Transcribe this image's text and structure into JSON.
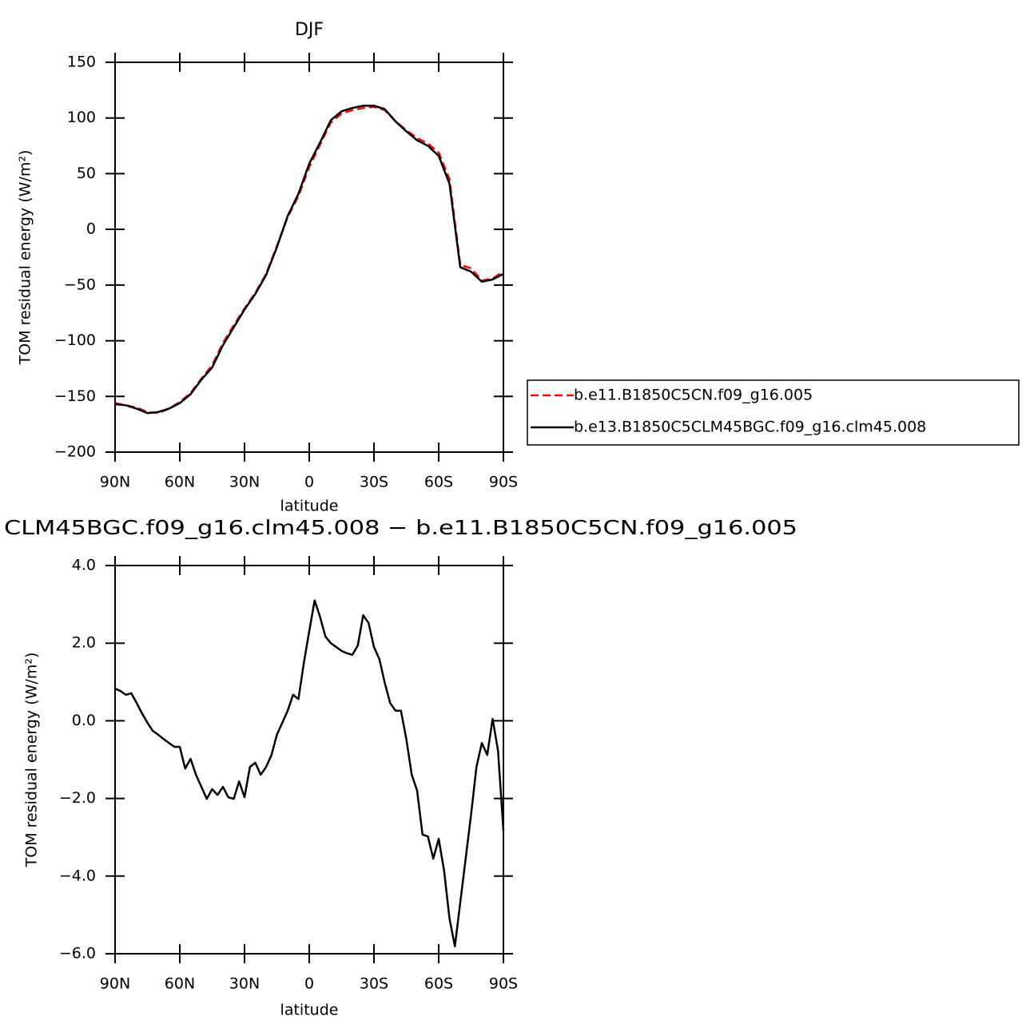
{
  "chart_data": [
    {
      "type": "line",
      "title": "DJF",
      "x_label": "latitude",
      "y_label": "TOM residual energy (W/m²)",
      "x": [
        90,
        85,
        80,
        75,
        70,
        65,
        60,
        55,
        50,
        45,
        40,
        35,
        30,
        25,
        20,
        15,
        10,
        5,
        0,
        -5,
        -10,
        -15,
        -20,
        -25,
        -30,
        -35,
        -40,
        -45,
        -50,
        -55,
        -60,
        -65,
        -70,
        -75,
        -80,
        -85,
        -90
      ],
      "series": [
        {
          "name": "b.e11.B1850C5CN.f09_g16.005",
          "color": "#ff0000",
          "style": "dashed",
          "values": [
            -156,
            -158,
            -160,
            -164,
            -165,
            -161,
            -155,
            -147,
            -134,
            -122,
            -102,
            -86,
            -71,
            -57,
            -40,
            -15,
            11,
            30,
            56,
            76,
            96,
            104,
            107,
            109,
            110,
            107,
            97,
            89,
            82,
            77,
            69,
            45,
            -32,
            -35,
            -46,
            -44,
            -38
          ]
        },
        {
          "name": "b.e13.B1850C5CLM45BGC.f09_g16.clm45.008",
          "color": "#000000",
          "style": "solid",
          "values": [
            -157,
            -158,
            -161,
            -165,
            -164,
            -161,
            -156,
            -148,
            -135,
            -124,
            -104,
            -88,
            -72,
            -58,
            -41,
            -16,
            12,
            32,
            59,
            78,
            98,
            106,
            109,
            111,
            111,
            108,
            97,
            88,
            80,
            75,
            66,
            41,
            -34,
            -38,
            -47,
            -45,
            -40
          ]
        }
      ],
      "xlim": [
        90,
        -90
      ],
      "xticks": [
        {
          "value": 90,
          "label": "90N"
        },
        {
          "value": 60,
          "label": "60N"
        },
        {
          "value": 30,
          "label": "30N"
        },
        0,
        {
          "value": -30,
          "label": "30S"
        },
        {
          "value": -60,
          "label": "60S"
        },
        {
          "value": -90,
          "label": "90S"
        }
      ],
      "ylim": [
        -200,
        150
      ],
      "yticks": [
        150,
        100,
        50,
        0,
        {
          "value": -50,
          "label": "−50"
        },
        {
          "value": -100,
          "label": "−100"
        },
        {
          "value": -150,
          "label": "−150"
        },
        {
          "value": -200,
          "label": "−200"
        }
      ],
      "legend": "right"
    },
    {
      "type": "line",
      "title": "CLM45BGC.f09_g16.clm45.008 − b.e11.B1850C5CN.f09_g16.005",
      "x_label": "latitude",
      "y_label": "TOM residual energy (W/m²)",
      "x": [
        90,
        87.5,
        85,
        82.5,
        80,
        77.5,
        75,
        72.5,
        70,
        67.5,
        65,
        62.5,
        60,
        57.5,
        55,
        52.5,
        50,
        47.5,
        45,
        42.5,
        40,
        37.5,
        35,
        32.5,
        30,
        27.5,
        25,
        22.5,
        20,
        17.5,
        15,
        12.5,
        10,
        7.5,
        5,
        2.5,
        0,
        -2.5,
        -5,
        -7.5,
        -10,
        -12.5,
        -15,
        -17.5,
        -20,
        -22.5,
        -25,
        -27.5,
        -30,
        -32.5,
        -35,
        -37.5,
        -40,
        -42.5,
        -45,
        -47.5,
        -50,
        -52.5,
        -55,
        -57.5,
        -60,
        -62.5,
        -65,
        -67.5,
        -70,
        -72.5,
        -75,
        -77.5,
        -80,
        -82.5,
        -85,
        -87.5,
        -90
      ],
      "color": "#000000",
      "values": [
        0.83,
        0.77,
        0.67,
        0.71,
        0.46,
        0.19,
        -0.05,
        -0.26,
        -0.36,
        -0.47,
        -0.57,
        -0.67,
        -0.67,
        -1.23,
        -0.98,
        -1.39,
        -1.7,
        -2.01,
        -1.76,
        -1.91,
        -1.7,
        -1.97,
        -2.01,
        -1.56,
        -1.97,
        -1.19,
        -1.08,
        -1.39,
        -1.19,
        -0.88,
        -0.36,
        -0.05,
        0.26,
        0.67,
        0.56,
        1.49,
        2.31,
        3.1,
        2.68,
        2.17,
        2.0,
        1.9,
        1.8,
        1.74,
        1.7,
        1.94,
        2.72,
        2.52,
        1.9,
        1.59,
        0.98,
        0.46,
        0.26,
        0.26,
        -0.47,
        -1.39,
        -1.8,
        -2.93,
        -2.98,
        -3.55,
        -3.04,
        -3.86,
        -5.09,
        -5.81,
        -4.68,
        -3.55,
        -2.42,
        -1.19,
        -0.57,
        -0.88,
        0.05,
        -0.77,
        -2.83
      ],
      "xlim": [
        90,
        -90
      ],
      "xticks": [
        {
          "value": 90,
          "label": "90N"
        },
        {
          "value": 60,
          "label": "60N"
        },
        {
          "value": 30,
          "label": "30N"
        },
        0,
        {
          "value": -30,
          "label": "30S"
        },
        {
          "value": -60,
          "label": "60S"
        },
        {
          "value": -90,
          "label": "90S"
        }
      ],
      "ylim": [
        -6,
        4
      ],
      "yticks": [
        {
          "value": 4,
          "label": "4.0"
        },
        {
          "value": 2,
          "label": "2.0"
        },
        {
          "value": 0,
          "label": "0.0"
        },
        {
          "value": -2,
          "label": "−2.0"
        },
        {
          "value": -4,
          "label": "−4.0"
        },
        {
          "value": -6,
          "label": "−6.0"
        }
      ]
    }
  ]
}
